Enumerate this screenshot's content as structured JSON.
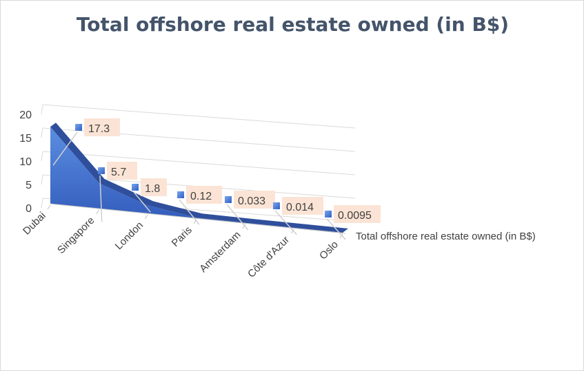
{
  "chart_data": {
    "type": "area",
    "title": "Total offshore real estate owned (in B$)",
    "categories": [
      "Dubai",
      "Singapore",
      "London",
      "Paris",
      "Amsterdam",
      "Côte d'Azur",
      "Oslo"
    ],
    "series": [
      {
        "name": "Total offshore real estate owned (in B$)",
        "values": [
          17.3,
          5.7,
          1.8,
          0.12,
          0.033,
          0.014,
          0.0095
        ],
        "labels": [
          "17.3",
          "5.7",
          "1.8",
          "0.12",
          "0.033",
          "0.014",
          "0.0095"
        ]
      }
    ],
    "y_ticks": [
      "0",
      "5",
      "10",
      "15",
      "20"
    ],
    "ylim": [
      0,
      20
    ],
    "grid": true,
    "legend_position": "right",
    "colors": {
      "area": "#4472c4",
      "area_top": "#2f4f9c",
      "label_bg": "#fbe4d5",
      "text": "#404040",
      "title": "#44546a",
      "grid": "#d9d9d9"
    }
  }
}
